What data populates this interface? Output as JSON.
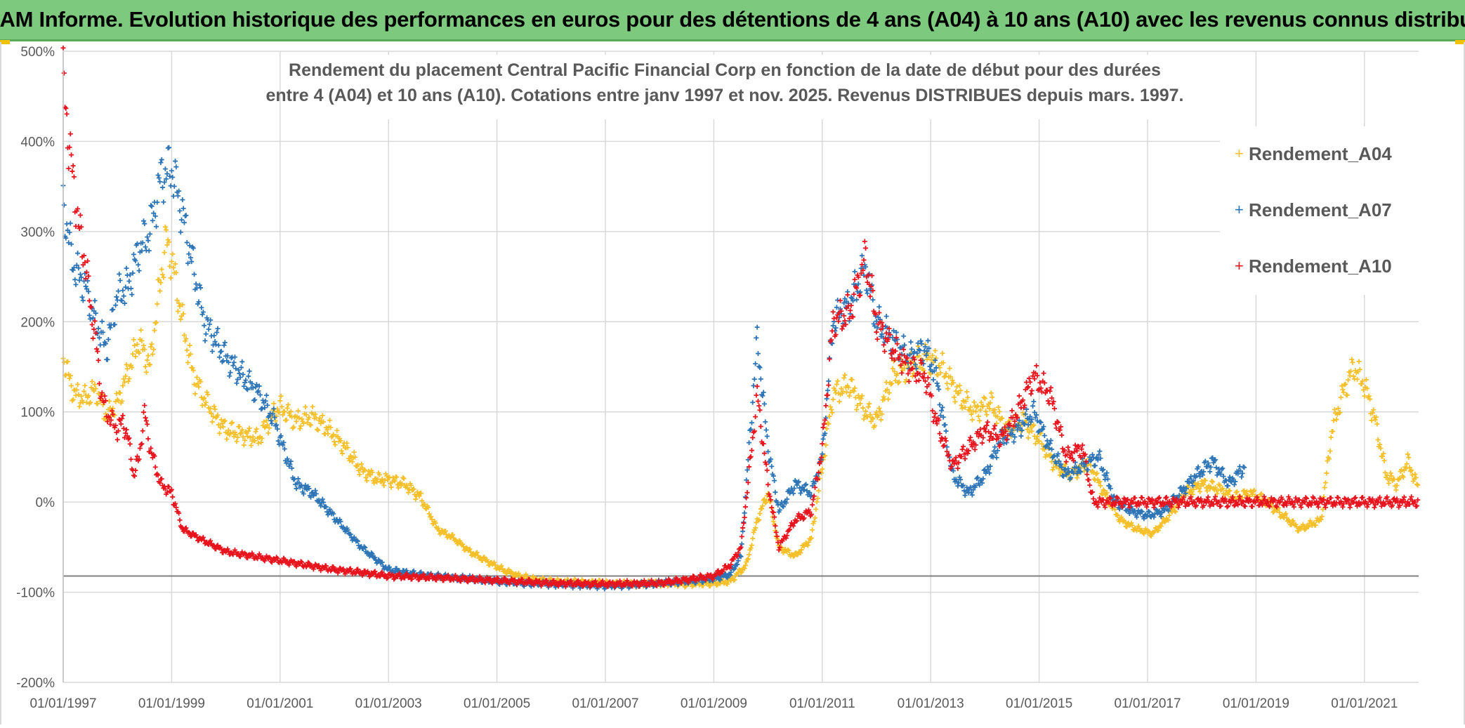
{
  "banner": {
    "title": "ADAM Informe. Evolution historique des performances en euros pour des détentions de 4 ans (A04) à 10 ans (A10) avec les revenus connus distribués"
  },
  "colors": {
    "A04": "#f5c02a",
    "A07": "#2e75b6",
    "A10": "#e8141e",
    "banner": "#7dc97d",
    "grid": "#d9d9d9"
  },
  "chart_data": {
    "type": "scatter",
    "title_line1": "Rendement du placement Central Pacific Financial Corp en fonction de la date de début pour des durées",
    "title_line2": "entre 4 (A04) et 10 ans (A10). Cotations entre janv 1997 et nov. 2025. Revenus DISTRIBUES depuis mars. 1997.",
    "xlabel": "",
    "ylabel": "",
    "xlim": [
      1997.0,
      2022.0
    ],
    "ylim": [
      -200,
      500
    ],
    "y_ticks": [
      500,
      400,
      300,
      200,
      100,
      0,
      -100,
      -200
    ],
    "y_tick_labels": [
      "500%",
      "400%",
      "300%",
      "200%",
      "100%",
      "0%",
      "-100%",
      "-200%"
    ],
    "x_ticks": [
      1997,
      1999,
      2001,
      2003,
      2005,
      2007,
      2009,
      2011,
      2013,
      2015,
      2017,
      2019,
      2021
    ],
    "x_tick_labels": [
      "01/01/1997",
      "01/01/1999",
      "01/01/2001",
      "01/01/2003",
      "01/01/2005",
      "01/01/2007",
      "01/01/2009",
      "01/01/2011",
      "01/01/2013",
      "01/01/2015",
      "01/01/2017",
      "01/01/2019",
      "01/01/2021"
    ],
    "reference_line": -82,
    "legend_position": "right",
    "series": [
      {
        "name": "Rendement_A04",
        "x": [
          1997.0,
          1997.2,
          1997.4,
          1997.6,
          1997.8,
          1998.0,
          1998.2,
          1998.4,
          1998.6,
          1998.8,
          1998.9,
          1999.0,
          1999.2,
          1999.4,
          1999.6,
          1999.8,
          2000.0,
          2000.3,
          2000.6,
          2000.9,
          2001.0,
          2001.3,
          2001.6,
          2001.9,
          2002.2,
          2002.5,
          2002.8,
          2003.0,
          2003.3,
          2003.6,
          2003.9,
          2004.2,
          2004.5,
          2004.8,
          2005.1,
          2005.4,
          2005.7,
          2006.0,
          2006.5,
          2007.0,
          2007.5,
          2008.0,
          2008.5,
          2009.0,
          2009.3,
          2009.6,
          2009.8,
          2010.0,
          2010.2,
          2010.5,
          2010.8,
          2011.0,
          2011.2,
          2011.5,
          2011.8,
          2012.0,
          2012.3,
          2012.6,
          2012.9,
          2013.2,
          2013.5,
          2013.8,
          2014.1,
          2014.4,
          2014.7,
          2015.0,
          2015.3,
          2015.6,
          2015.9,
          2016.2,
          2016.5,
          2016.8,
          2017.1,
          2017.4,
          2017.7,
          2018.0,
          2018.3,
          2018.6,
          2018.9,
          2019.2,
          2019.5,
          2019.8,
          2020.0,
          2020.2,
          2020.4,
          2020.6,
          2020.8,
          2021.0,
          2021.2,
          2021.4,
          2021.6,
          2021.8,
          2022.0
        ],
        "values": [
          160,
          120,
          115,
          125,
          95,
          110,
          145,
          180,
          150,
          250,
          290,
          270,
          200,
          140,
          115,
          95,
          80,
          75,
          70,
          100,
          105,
          90,
          95,
          80,
          60,
          35,
          25,
          25,
          20,
          5,
          -30,
          -40,
          -55,
          -65,
          -75,
          -82,
          -86,
          -88,
          -89,
          -90,
          -91,
          -90,
          -91,
          -90,
          -88,
          -70,
          -20,
          10,
          -50,
          -60,
          -40,
          40,
          120,
          130,
          100,
          90,
          140,
          150,
          160,
          150,
          120,
          100,
          110,
          80,
          90,
          70,
          40,
          30,
          45,
          10,
          -20,
          -30,
          -35,
          -15,
          10,
          20,
          15,
          5,
          10,
          0,
          -15,
          -30,
          -25,
          -20,
          80,
          120,
          150,
          130,
          90,
          30,
          20,
          45,
          15
        ]
      },
      {
        "name": "Rendement_A07",
        "x": [
          1997.0,
          1997.2,
          1997.4,
          1997.6,
          1997.8,
          1998.0,
          1998.2,
          1998.4,
          1998.6,
          1998.8,
          1999.0,
          1999.2,
          1999.4,
          1999.6,
          1999.8,
          2000.0,
          2000.3,
          2000.6,
          2000.9,
          2001.0,
          2001.3,
          2001.6,
          2001.9,
          2002.2,
          2002.5,
          2002.8,
          2003.0,
          2003.5,
          2004.0,
          2004.5,
          2005.0,
          2005.5,
          2006.0,
          2006.5,
          2007.0,
          2007.5,
          2008.0,
          2008.5,
          2009.0,
          2009.3,
          2009.5,
          2009.7,
          2009.8,
          2010.0,
          2010.2,
          2010.5,
          2010.8,
          2011.0,
          2011.2,
          2011.5,
          2011.8,
          2012.0,
          2012.3,
          2012.6,
          2012.9,
          2013.1,
          2013.4,
          2013.7,
          2014.0,
          2014.3,
          2014.6,
          2014.9,
          2015.2,
          2015.5,
          2015.8,
          2016.1,
          2016.4,
          2016.7,
          2017.0,
          2017.3,
          2017.6,
          2017.9,
          2018.2,
          2018.5,
          2018.8
        ],
        "values": [
          330,
          260,
          240,
          200,
          170,
          230,
          240,
          280,
          300,
          360,
          370,
          320,
          260,
          200,
          180,
          160,
          140,
          120,
          90,
          70,
          20,
          10,
          -10,
          -30,
          -50,
          -65,
          -75,
          -80,
          -83,
          -85,
          -88,
          -90,
          -91,
          -92,
          -93,
          -92,
          -90,
          -88,
          -85,
          -80,
          -60,
          100,
          180,
          60,
          -10,
          20,
          10,
          50,
          200,
          220,
          260,
          200,
          180,
          160,
          170,
          140,
          30,
          10,
          30,
          70,
          80,
          100,
          60,
          30,
          40,
          50,
          0,
          -10,
          -15,
          -10,
          10,
          30,
          45,
          20,
          40
        ]
      },
      {
        "name": "Rendement_A10",
        "x": [
          1997.0,
          1997.05,
          1997.1,
          1997.2,
          1997.3,
          1997.4,
          1997.5,
          1997.6,
          1997.7,
          1997.8,
          1997.9,
          1998.0,
          1998.1,
          1998.2,
          1998.3,
          1998.4,
          1998.5,
          1998.6,
          1998.7,
          1998.8,
          1999.0,
          1999.2,
          1999.5,
          2000.0,
          2000.5,
          2001.0,
          2001.5,
          2002.0,
          2002.5,
          2003.0,
          2004.0,
          2005.0,
          2006.0,
          2007.0,
          2008.0,
          2008.5,
          2009.0,
          2009.3,
          2009.5,
          2009.7,
          2009.8,
          2010.0,
          2010.2,
          2010.5,
          2010.8,
          2011.0,
          2011.2,
          2011.5,
          2011.8,
          2012.0,
          2012.3,
          2012.6,
          2012.9,
          2013.1,
          2013.4,
          2013.7,
          2014.0,
          2014.3,
          2014.6,
          2014.9,
          2015.2,
          2015.5,
          2015.8,
          2016.0,
          2017.0,
          2018.0,
          2019.0,
          2020.0,
          2021.0,
          2022.0
        ],
        "values": [
          465,
          440,
          400,
          350,
          300,
          270,
          220,
          180,
          120,
          100,
          90,
          80,
          90,
          70,
          30,
          50,
          100,
          60,
          40,
          20,
          10,
          -30,
          -40,
          -55,
          -60,
          -65,
          -70,
          -75,
          -78,
          -82,
          -84,
          -87,
          -90,
          -91,
          -90,
          -86,
          -82,
          -70,
          -50,
          60,
          120,
          20,
          -50,
          -20,
          -10,
          60,
          200,
          210,
          270,
          200,
          170,
          150,
          140,
          90,
          40,
          60,
          80,
          70,
          100,
          140,
          120,
          50,
          60,
          0,
          0,
          0,
          0,
          0,
          0,
          0
        ]
      }
    ]
  }
}
